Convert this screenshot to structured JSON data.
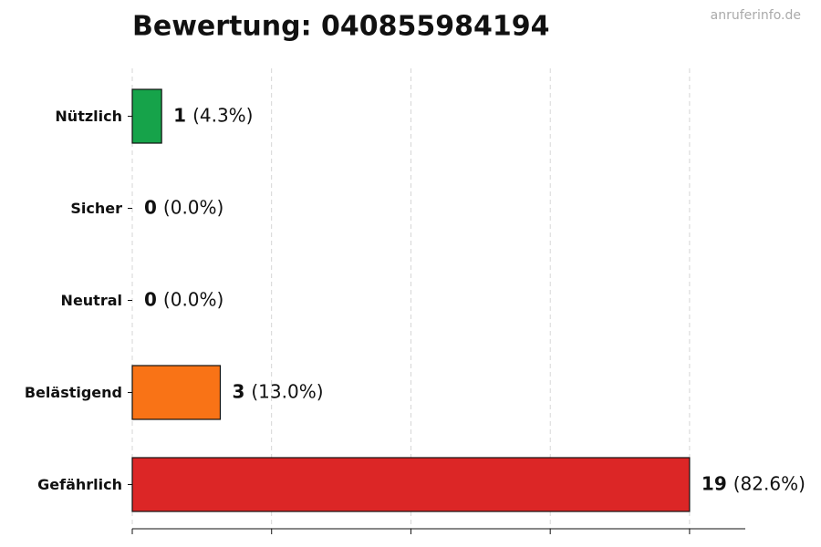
{
  "chart_data": {
    "type": "barh",
    "title": "Bewertung: 040855984194",
    "watermark": "anruferinfo.de",
    "categories": [
      "Nützlich",
      "Sicher",
      "Neutral",
      "Belästigend",
      "Gefährlich"
    ],
    "values": [
      1,
      0,
      0,
      3,
      19
    ],
    "shares": [
      4.3,
      0.0,
      0.0,
      13.0,
      82.6
    ],
    "share_labels": [
      "(4.3%)",
      "(0.0%)",
      "(0.0%)",
      "(13.0%)",
      "(82.6%)"
    ],
    "colors": [
      "#16a34a",
      "#6b7280",
      "#6b7280",
      "#f97316",
      "#dc2626"
    ],
    "xlim": [
      0,
      20.9
    ],
    "xticks": [
      0,
      4.75,
      9.5,
      14.25,
      19
    ],
    "grid": true
  }
}
